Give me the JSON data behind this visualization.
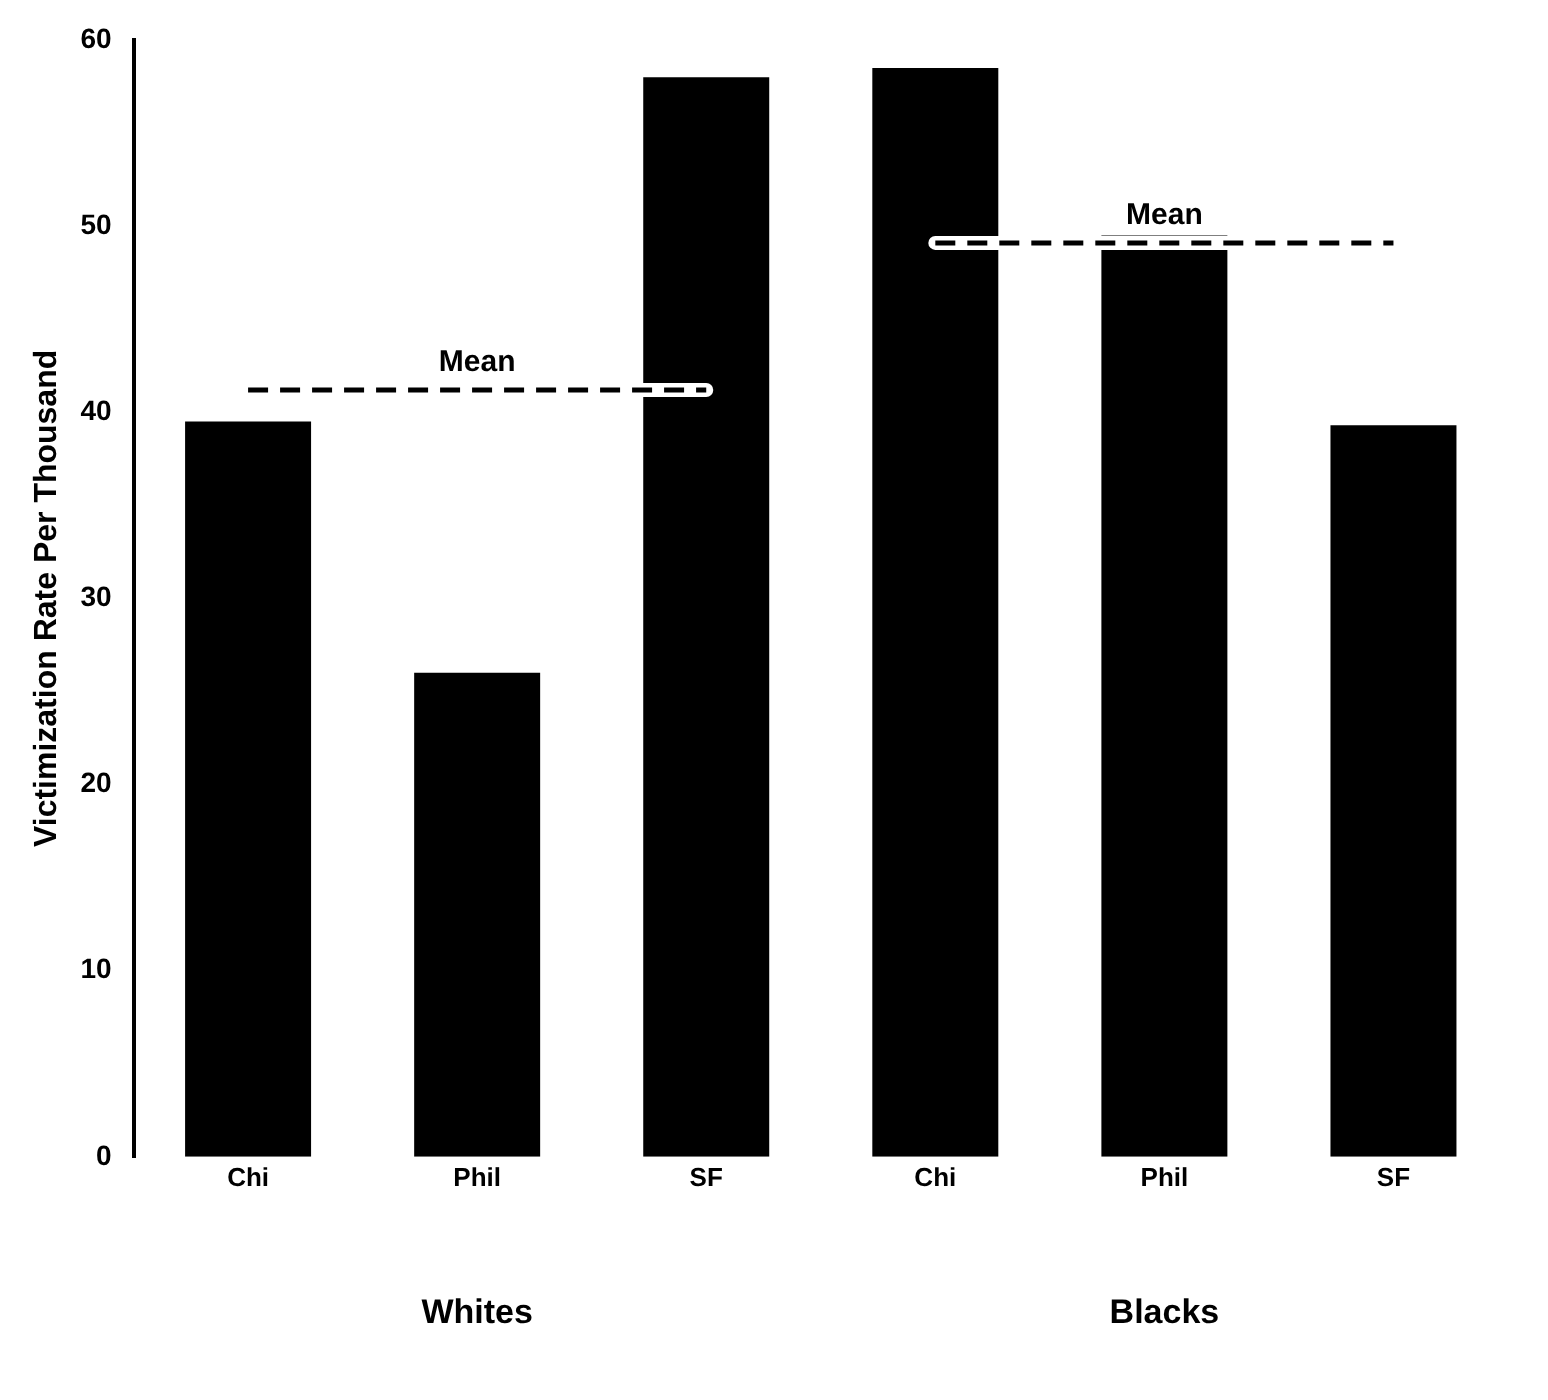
{
  "chart_data": {
    "type": "bar",
    "ylabel": "Victimization Rate Per Thousand",
    "categories": [
      "Chi",
      "Phil",
      "SF",
      "Chi",
      "Phil",
      "SF"
    ],
    "series": [
      {
        "color": "#000000",
        "values": [
          39.5,
          26,
          58,
          58.5,
          49.5,
          39.3
        ]
      },
      {
        "type": "line",
        "name": "Mean",
        "color": "#000000",
        "line_style": "dashed",
        "marker": "none",
        "values": [
          41.2,
          41.2,
          41.2,
          null,
          null,
          null
        ]
      },
      {
        "type": "line",
        "name": "Mean",
        "color": "#000000",
        "line_style": "dashed",
        "marker": "none",
        "values": [
          null,
          null,
          null,
          49.1,
          49.1,
          49.1
        ]
      }
    ],
    "ylim": [
      0,
      60
    ],
    "yticks": [
      0,
      10,
      20,
      30,
      40,
      50,
      60
    ],
    "grid": false,
    "legend": false,
    "annotations": [
      "Whites",
      "Blacks"
    ]
  }
}
